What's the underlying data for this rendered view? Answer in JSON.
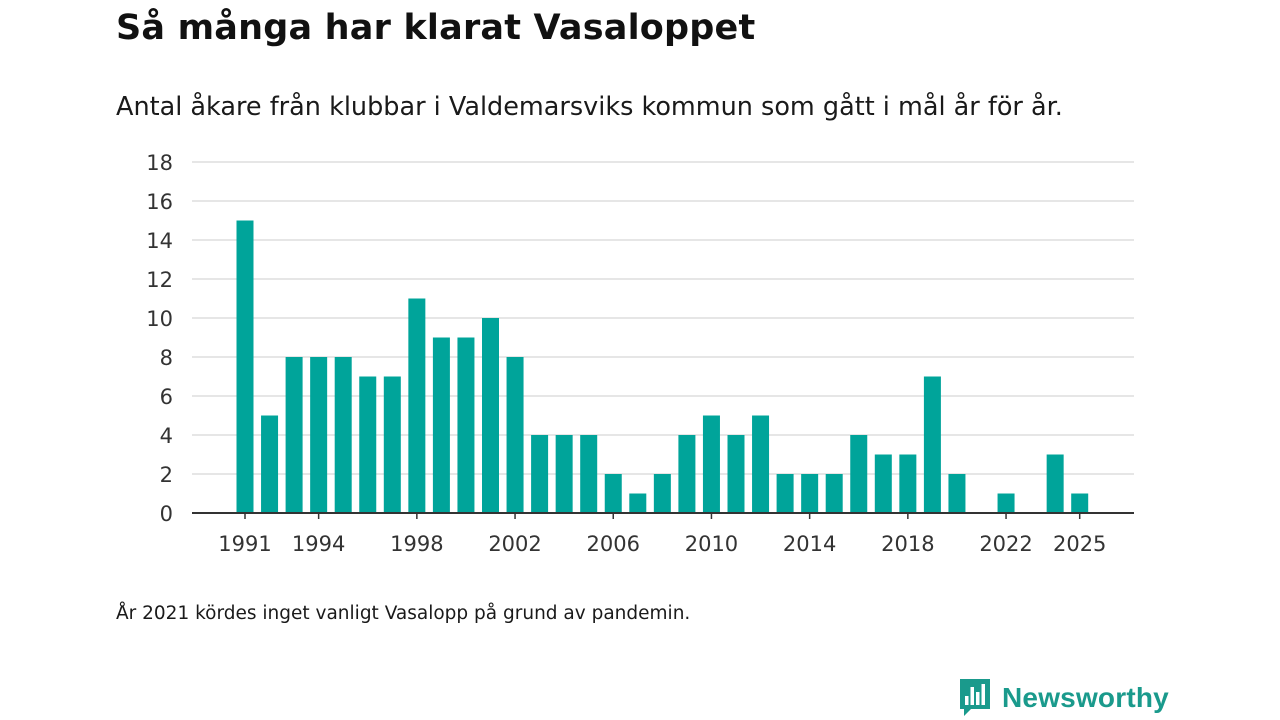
{
  "header": {
    "title": "Så många har klarat Vasaloppet",
    "subtitle": "Antal åkare från klubbar i Valdemarsviks kommun som gått i mål år för år."
  },
  "footnote": "År 2021 kördes inget vanligt Vasalopp på grund av pandemin.",
  "brand": {
    "name": "Newsworthy",
    "icon": "newsworthy-logo-icon",
    "color": "#1a9a8c"
  },
  "chart_data": {
    "type": "bar",
    "title": "Så många har klarat Vasaloppet",
    "subtitle": "Antal åkare från klubbar i Valdemarsviks kommun som gått i mål år för år.",
    "xlabel": "",
    "ylabel": "",
    "bar_color": "#00a49a",
    "grid": true,
    "ylim": [
      0,
      18
    ],
    "y_ticks": [
      "0",
      "2",
      "4",
      "6",
      "8",
      "10",
      "12",
      "14",
      "16",
      "18"
    ],
    "x_ticks": [
      "1991",
      "1994",
      "1998",
      "2002",
      "2006",
      "2010",
      "2014",
      "2018",
      "2022",
      "2025"
    ],
    "categories": [
      1991,
      1992,
      1993,
      1994,
      1995,
      1996,
      1997,
      1998,
      1999,
      2000,
      2001,
      2002,
      2003,
      2004,
      2005,
      2006,
      2007,
      2008,
      2009,
      2010,
      2011,
      2012,
      2013,
      2014,
      2015,
      2016,
      2017,
      2018,
      2019,
      2020,
      2021,
      2022,
      2023,
      2024,
      2025
    ],
    "values": [
      15,
      5,
      8,
      8,
      8,
      7,
      7,
      11,
      9,
      9,
      10,
      8,
      4,
      4,
      4,
      2,
      1,
      2,
      4,
      5,
      4,
      5,
      2,
      2,
      2,
      4,
      3,
      3,
      7,
      2,
      0,
      1,
      0,
      3,
      1
    ]
  }
}
